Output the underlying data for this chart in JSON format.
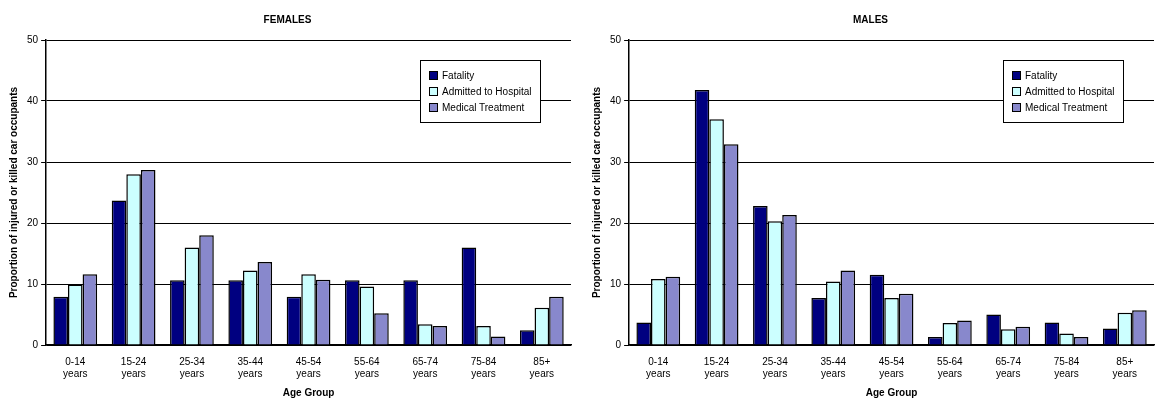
{
  "chart_data": [
    {
      "type": "bar",
      "title": "FEMALES",
      "xlabel": "Age Group",
      "ylabel": "Proportion of injured or killed car occupants",
      "categories": [
        "0-14 years",
        "15-24 years",
        "25-34 years",
        "35-44 years",
        "45-54 years",
        "55-64 years",
        "65-74 years",
        "75-84 years",
        "85+ years"
      ],
      "series": [
        {
          "name": "Fatality",
          "color": "#000080",
          "values": [
            7.9,
            23.7,
            10.6,
            10.6,
            7.9,
            10.6,
            10.6,
            16.0,
            2.4
          ]
        },
        {
          "name": "Admitted to Hospital",
          "color": "#ccffff",
          "values": [
            9.9,
            28.0,
            16.0,
            12.2,
            11.6,
            9.6,
            3.4,
            3.1,
            6.1
          ]
        },
        {
          "name": "Medical Treatment",
          "color": "#8888cc",
          "values": [
            11.6,
            28.7,
            18.0,
            13.6,
            10.7,
            5.2,
            3.1,
            1.4,
            7.9
          ]
        }
      ],
      "ylim": [
        0,
        50
      ],
      "yticks": [
        0,
        10,
        20,
        30,
        40,
        50
      ],
      "grid": "y",
      "legend": "top right"
    },
    {
      "type": "bar",
      "title": "MALES",
      "xlabel": "Age Group",
      "ylabel": "Proportion of injured or killed car occupants",
      "categories": [
        "0-14 years",
        "15-24 years",
        "25-34 years",
        "35-44 years",
        "45-54 years",
        "55-64 years",
        "65-74 years",
        "75-84 years",
        "85+ years"
      ],
      "series": [
        {
          "name": "Fatality",
          "color": "#000080",
          "values": [
            3.7,
            41.8,
            22.8,
            7.7,
            11.5,
            1.3,
            5.0,
            3.7,
            2.7
          ]
        },
        {
          "name": "Admitted to Hospital",
          "color": "#ccffff",
          "values": [
            10.8,
            37.0,
            20.3,
            10.4,
            7.7,
            3.6,
            2.6,
            1.9,
            5.3
          ]
        },
        {
          "name": "Medical Treatment",
          "color": "#8888cc",
          "values": [
            11.2,
            32.9,
            21.3,
            12.2,
            8.4,
            4.0,
            3.0,
            1.3,
            5.7
          ]
        }
      ],
      "ylim": [
        0,
        50
      ],
      "yticks": [
        0,
        10,
        20,
        30,
        40,
        50
      ],
      "grid": "y",
      "legend": "top right"
    }
  ]
}
